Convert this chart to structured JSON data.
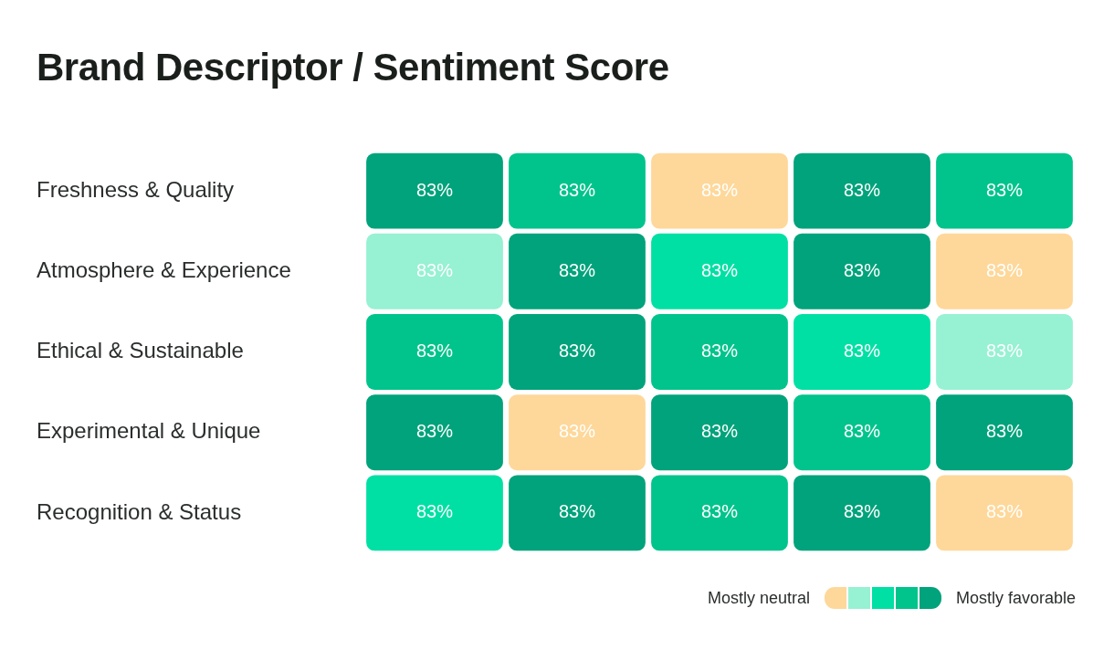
{
  "chart_data": {
    "type": "heatmap",
    "title": "Brand Descriptor / Sentiment Score",
    "categories": [
      null,
      null,
      null,
      null,
      null
    ],
    "y_categories": [
      "Freshness & Quality",
      "Atmosphere & Experience",
      "Ethical & Sustainable",
      "Experimental & Unique",
      "Recognition & Status"
    ],
    "cells": [
      [
        83,
        83,
        83,
        83,
        83
      ],
      [
        83,
        83,
        83,
        83,
        83
      ],
      [
        83,
        83,
        83,
        83,
        83
      ],
      [
        83,
        83,
        83,
        83,
        83
      ],
      [
        83,
        83,
        83,
        83,
        83
      ]
    ],
    "cell_labels": [
      [
        "83%",
        "83%",
        "83%",
        "83%",
        "83%"
      ],
      [
        "83%",
        "83%",
        "83%",
        "83%",
        "83%"
      ],
      [
        "83%",
        "83%",
        "83%",
        "83%",
        "83%"
      ],
      [
        "83%",
        "83%",
        "83%",
        "83%",
        "83%"
      ],
      [
        "83%",
        "83%",
        "83%",
        "83%",
        "83%"
      ]
    ],
    "colors": [
      [
        "#00a37b",
        "#00c48c",
        "#fed89a",
        "#00a37b",
        "#00c48c"
      ],
      [
        "#97f1d3",
        "#00a37b",
        "#00e0a4",
        "#00a37b",
        "#fed89a"
      ],
      [
        "#00c48c",
        "#00a37b",
        "#00c48c",
        "#00e0a4",
        "#97f1d3"
      ],
      [
        "#00a37b",
        "#fed89a",
        "#00a37b",
        "#00c48c",
        "#00a37b"
      ],
      [
        "#00e0a4",
        "#00a37b",
        "#00c48c",
        "#00a37b",
        "#fed89a"
      ]
    ],
    "annotations": [
      "Mostly neutral",
      "Mostly favorable"
    ]
  }
}
